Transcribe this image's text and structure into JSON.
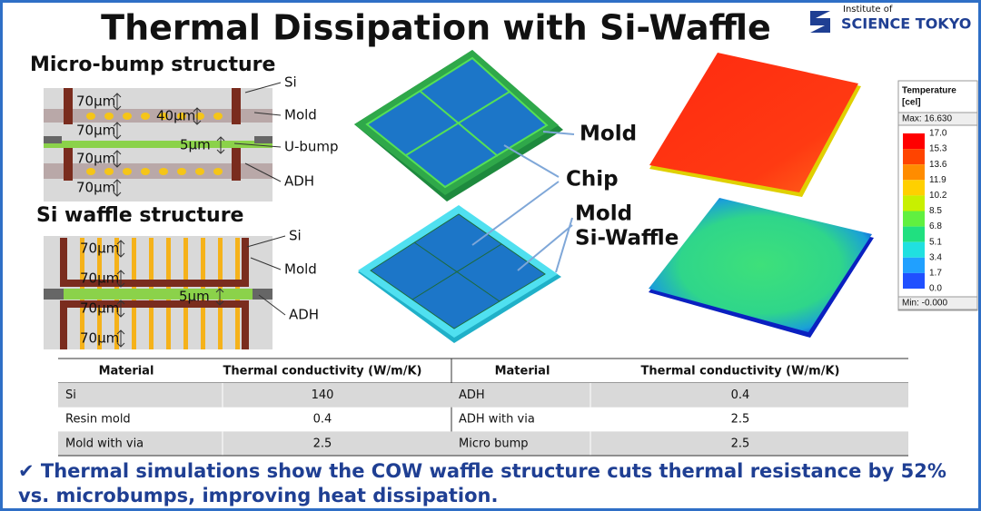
{
  "header": {
    "title": "Thermal Dissipation with Si-Waffle",
    "logo": {
      "line1": "Institute of",
      "line2": "SCIENCE TOKYO"
    }
  },
  "micro_bump": {
    "title": "Micro-bump structure",
    "dims": [
      "70µm",
      "40µm",
      "70µm",
      "5µm",
      "70µm",
      "70µm"
    ],
    "callouts": [
      "Si",
      "Mold",
      "U-bump",
      "ADH"
    ]
  },
  "si_waffle": {
    "title": "Si waffle structure",
    "dims": [
      "70µm",
      "70µm",
      "5µm",
      "70µm",
      "70µm"
    ],
    "callouts": [
      "Si",
      "Mold",
      "ADH"
    ]
  },
  "render_labels": [
    "Mold",
    "Chip",
    "Mold",
    "Si-Waffle"
  ],
  "legend": {
    "title": "Temperature",
    "unit": "[cel]",
    "max": "Max: 16.630",
    "ticks": [
      "17.0",
      "15.3",
      "13.6",
      "11.9",
      "10.2",
      "8.5",
      "6.8",
      "5.1",
      "3.4",
      "1.7",
      "0.0"
    ],
    "min": "Min: -0.000"
  },
  "table": {
    "headers": [
      "Material",
      "Thermal conductivity (W/m/K)",
      "Material",
      "Thermal conductivity (W/m/K)"
    ],
    "rows": [
      [
        "Si",
        140,
        "ADH",
        0.4
      ],
      [
        "Resin mold",
        0.4,
        "ADH with via",
        2.5
      ],
      [
        "Mold with via",
        2.5,
        "Micro bump",
        2.5
      ]
    ]
  },
  "footer": [
    "✔ Thermal simulations show the COW waffle structure cuts thermal resistance by 52%",
    "vs. microbumps, improving heat dissipation."
  ]
}
